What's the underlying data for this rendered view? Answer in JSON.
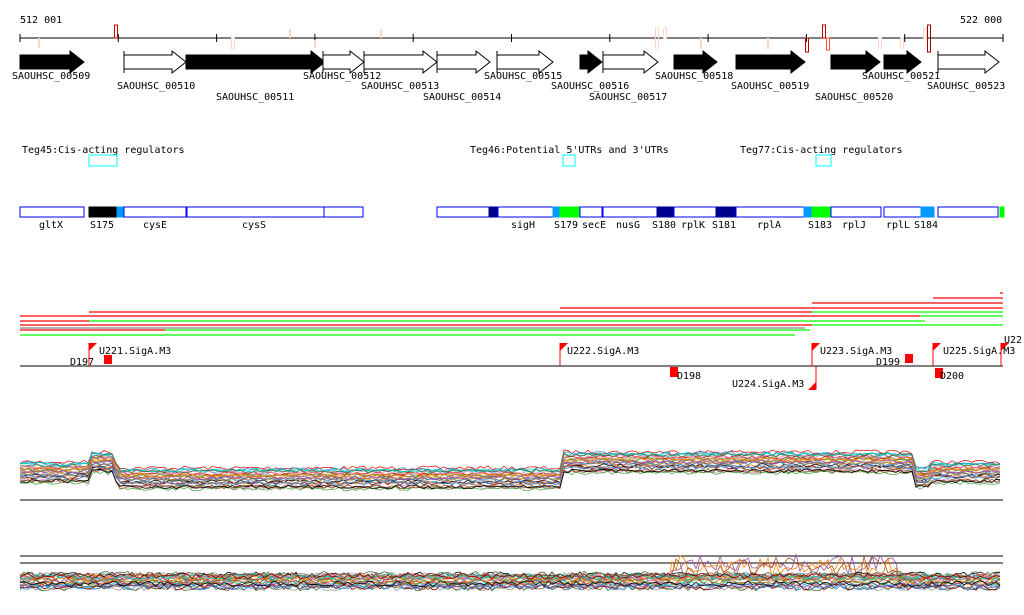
{
  "ruler": {
    "start_label": "512 001",
    "end_label": "522 000"
  },
  "genes": [
    {
      "name": "SAOUHSC_00509",
      "strand": "filled"
    },
    {
      "name": "SAOUHSC_00510",
      "strand": "open"
    },
    {
      "name": "SAOUHSC_00511",
      "strand": "filled"
    },
    {
      "name": "SAOUHSC_00512",
      "strand": "open"
    },
    {
      "name": "SAOUHSC_00513",
      "strand": "open"
    },
    {
      "name": "SAOUHSC_00514",
      "strand": "open"
    },
    {
      "name": "SAOUHSC_00515",
      "strand": "open"
    },
    {
      "name": "SAOUHSC_00516",
      "strand": "filled"
    },
    {
      "name": "SAOUHSC_00517",
      "strand": "open"
    },
    {
      "name": "SAOUHSC_00518",
      "strand": "filled"
    },
    {
      "name": "SAOUHSC_00519",
      "strand": "filled"
    },
    {
      "name": "SAOUHSC_00520",
      "strand": "filled"
    },
    {
      "name": "SAOUHSC_00521",
      "strand": "filled"
    },
    {
      "name": "SAOUHSC_00523",
      "strand": "open"
    }
  ],
  "regulators": [
    {
      "label": "Teg45:Cis-acting regulators"
    },
    {
      "label": "Teg46:Potential 5'UTRs and 3'UTRs"
    },
    {
      "label": "Teg77:Cis-acting regulators"
    }
  ],
  "segment_labels": [
    "gltX",
    "S175",
    "cysE",
    "cysS",
    "sigH",
    "S179",
    "secE",
    "nusG",
    "S180",
    "rplK",
    "S181",
    "rplA",
    "S183",
    "rplJ",
    "rplL",
    "S184"
  ],
  "promoters": [
    "U221.SigA.M3",
    "D197",
    "U222.SigA.M3",
    "D198",
    "U223.SigA.M3",
    "D199",
    "U224.SigA.M3",
    "U225.SigA.M3",
    "U22",
    "D200"
  ],
  "colors": {
    "red": "#ff0000",
    "green": "#00ff00",
    "navy": "#000090",
    "lightblue": "#0099ff",
    "blue": "#0000ff",
    "cyan": "#00ffff"
  }
}
